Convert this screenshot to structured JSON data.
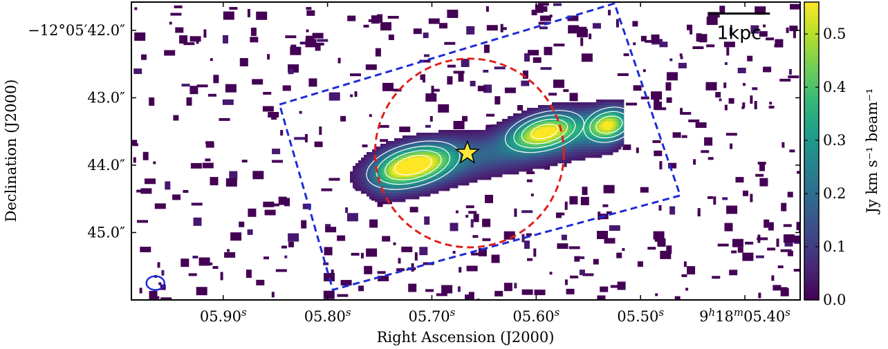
{
  "chart_data": {
    "type": "heatmap",
    "xlabel": "Right Ascension (J2000)",
    "ylabel": "Declination (J2000)",
    "x_ticks": [
      {
        "value": 5.9,
        "main": "05.90",
        "sup": "s"
      },
      {
        "value": 5.8,
        "main": "05.80",
        "sup": "s"
      },
      {
        "value": 5.7,
        "main": "05.70",
        "sup": "s"
      },
      {
        "value": 5.6,
        "main": "05.60",
        "sup": "s"
      },
      {
        "value": 5.5,
        "main": "05.50",
        "sup": "s"
      },
      {
        "value": 5.4,
        "prefix": "9",
        "prefix_sup": "h",
        "mid": "18",
        "mid_sup": "m",
        "main": "05.40",
        "sup": "s"
      }
    ],
    "y_ticks": [
      {
        "value": 42.0,
        "text": "−12°05′42.0″"
      },
      {
        "value": 43.0,
        "text": "43.0″"
      },
      {
        "value": 44.0,
        "text": "44.0″"
      },
      {
        "value": 45.0,
        "text": "45.0″"
      }
    ],
    "xlim": [
      5.988,
      5.347
    ],
    "ylim": [
      46.0,
      41.58
    ],
    "colorbar": {
      "label": "Jy km s⁻¹ beam⁻¹",
      "range": [
        0.0,
        0.56
      ],
      "ticks": [
        {
          "value": 0.0,
          "text": "0.0"
        },
        {
          "value": 0.1,
          "text": "0.1"
        },
        {
          "value": 0.2,
          "text": "0.2"
        },
        {
          "value": 0.3,
          "text": "0.3"
        },
        {
          "value": 0.4,
          "text": "0.4"
        },
        {
          "value": 0.5,
          "text": "0.5"
        }
      ],
      "colormap": [
        "#440154",
        "#482878",
        "#3e4989",
        "#31688e",
        "#26828e",
        "#1f9e89",
        "#35b779",
        "#6ece58",
        "#b5de2b",
        "#fde725"
      ]
    },
    "emission_peaks": [
      {
        "ra": 5.718,
        "dec": 44.0,
        "peak": 0.52
      },
      {
        "ra": 5.592,
        "dec": 43.5,
        "peak": 0.49
      },
      {
        "ra": 5.53,
        "dec": 43.4,
        "peak": 0.42
      }
    ],
    "contour_levels": [
      0.15,
      0.25,
      0.35,
      0.45
    ],
    "star_marker": {
      "ra": 5.666,
      "dec": 43.82,
      "color": "#fde73a"
    },
    "red_circle": {
      "ra": 5.664,
      "dec": 43.82,
      "radius_arcsec": 1.4,
      "style": "dashed",
      "color": "#e0201b"
    },
    "blue_box": {
      "style": "dashed",
      "color": "#1d2bd6",
      "corners": [
        {
          "ra": 5.846,
          "dec": 43.1
        },
        {
          "ra": 5.525,
          "dec": 41.6
        },
        {
          "ra": 5.462,
          "dec": 44.45
        },
        {
          "ra": 5.795,
          "dec": 45.85
        }
      ]
    },
    "beam": {
      "ra": 5.965,
      "dec": 45.75,
      "color": "#1d2bd6"
    },
    "scale_bar": {
      "label": "1kpc",
      "ra_start": 5.435,
      "ra_end": 5.376,
      "dec": 41.75
    }
  }
}
